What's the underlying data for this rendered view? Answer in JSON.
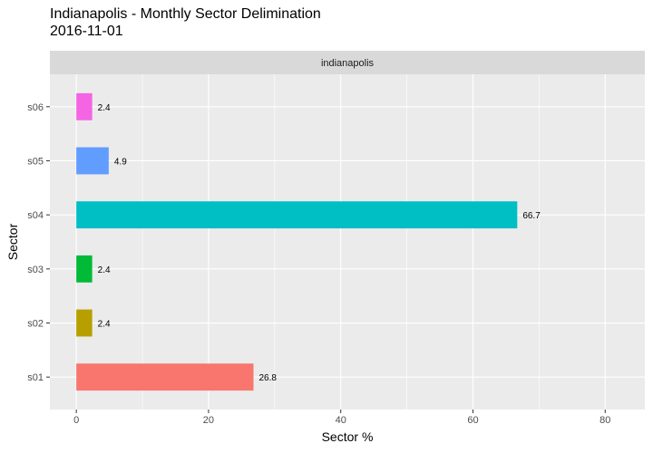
{
  "title": "Indianapolis - Monthly Sector Delimination",
  "subtitle": "2016-11-01",
  "chart_data": {
    "type": "bar",
    "orientation": "horizontal",
    "facet_label": "indianapolis",
    "categories": [
      "s01",
      "s02",
      "s03",
      "s04",
      "s05",
      "s06"
    ],
    "values": [
      26.8,
      2.4,
      2.4,
      66.7,
      4.9,
      2.4
    ],
    "data_labels": [
      "26.8",
      "2.4",
      "2.4",
      "66.7",
      "4.9",
      "2.4"
    ],
    "colors": [
      "#F8766D",
      "#B79F00",
      "#00BA38",
      "#00BFC4",
      "#619CFF",
      "#F564E3"
    ],
    "xlabel": "Sector %",
    "ylabel": "Sector",
    "xlim": [
      -4,
      86
    ],
    "xticks": [
      0,
      20,
      40,
      60,
      80
    ],
    "grid": true
  }
}
